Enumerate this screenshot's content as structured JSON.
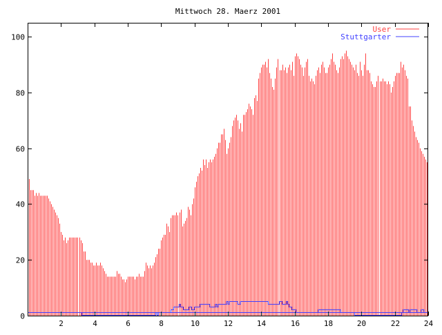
{
  "chart_data": {
    "type": "bar",
    "title": "Mittwoch 28. Maerz 2001",
    "xlabel": "",
    "ylabel": "",
    "xlim": [
      0,
      24
    ],
    "ylim": [
      0,
      105
    ],
    "x_step_hours": 0.0833333,
    "xticks": [
      2,
      4,
      6,
      8,
      10,
      12,
      14,
      16,
      18,
      20,
      22,
      24
    ],
    "yticks": [
      0,
      20,
      40,
      60,
      80,
      100
    ],
    "grid": false,
    "legend": "top-right",
    "series": [
      {
        "name": "User",
        "style": "impulses",
        "color": "#ff4040",
        "values": [
          53,
          49,
          45,
          45,
          45,
          43,
          44,
          43,
          44,
          43,
          43,
          43,
          43,
          43,
          43,
          42,
          41,
          40,
          39,
          38,
          37,
          36,
          35,
          33,
          30,
          29,
          27,
          28,
          26,
          27,
          28,
          28,
          28,
          28,
          28,
          28,
          28,
          28,
          27,
          26,
          23,
          23,
          20,
          20,
          20,
          19,
          19,
          18,
          18,
          19,
          18,
          18,
          19,
          18,
          17,
          16,
          15,
          14,
          14,
          14,
          14,
          14,
          14,
          14,
          16,
          15,
          15,
          14,
          13,
          13,
          12,
          13,
          14,
          14,
          14,
          14,
          14,
          13,
          14,
          14,
          15,
          14,
          14,
          14,
          16,
          19,
          18,
          17,
          18,
          17,
          18,
          19,
          21,
          22,
          24,
          24,
          27,
          28,
          29,
          29,
          33,
          32,
          30,
          35,
          36,
          36,
          36,
          37,
          36,
          37,
          38,
          32,
          33,
          34,
          35,
          39,
          38,
          36,
          40,
          42,
          46,
          48,
          50,
          51,
          53,
          52,
          56,
          54,
          56,
          53,
          55,
          56,
          55,
          56,
          57,
          58,
          60,
          62,
          62,
          65,
          65,
          67,
          63,
          58,
          60,
          62,
          64,
          68,
          70,
          71,
          72,
          70,
          67,
          69,
          66,
          72,
          72,
          73,
          74,
          76,
          75,
          74,
          72,
          78,
          79,
          77,
          85,
          87,
          89,
          90,
          90,
          91,
          89,
          92,
          87,
          85,
          82,
          81,
          85,
          89,
          92,
          88,
          88,
          90,
          88,
          89,
          87,
          89,
          90,
          88,
          91,
          86,
          93,
          94,
          93,
          92,
          90,
          89,
          86,
          89,
          91,
          92,
          86,
          84,
          85,
          84,
          83,
          86,
          88,
          89,
          87,
          90,
          91,
          89,
          87,
          87,
          89,
          90,
          92,
          94,
          91,
          90,
          88,
          87,
          89,
          92,
          93,
          92,
          94,
          95,
          93,
          92,
          91,
          90,
          89,
          88,
          90,
          87,
          86,
          91,
          88,
          86,
          90,
          94,
          88,
          88,
          87,
          84,
          83,
          82,
          82,
          84,
          86,
          84,
          84,
          85,
          84,
          84,
          83,
          84,
          83,
          80,
          82,
          84,
          86,
          87,
          87,
          87,
          91,
          89,
          90,
          88,
          86,
          85,
          75,
          75,
          70,
          68,
          66,
          64,
          63,
          62,
          60,
          59,
          58,
          57,
          56,
          55
        ]
      },
      {
        "name": "Stuttgarter",
        "style": "steps",
        "color": "#4040ff",
        "values": [
          1,
          1,
          1,
          1,
          1,
          1,
          1,
          1,
          1,
          1,
          1,
          1,
          1,
          1,
          1,
          1,
          1,
          1,
          1,
          1,
          1,
          1,
          1,
          1,
          1,
          1,
          1,
          1,
          1,
          1,
          1,
          1,
          1,
          1,
          1,
          1,
          1,
          1,
          1,
          0,
          0,
          0,
          0,
          0,
          0,
          0,
          0,
          0,
          0,
          0,
          0,
          0,
          0,
          0,
          0,
          0,
          0,
          0,
          0,
          0,
          0,
          0,
          0,
          0,
          0,
          0,
          0,
          0,
          0,
          0,
          0,
          0,
          0,
          0,
          0,
          0,
          0,
          0,
          0,
          0,
          0,
          0,
          0,
          0,
          0,
          0,
          0,
          0,
          0,
          0,
          0,
          0,
          1,
          0,
          1,
          1,
          1,
          1,
          1,
          1,
          1,
          1,
          1,
          2,
          2,
          3,
          3,
          3,
          3,
          4,
          3,
          3,
          2,
          2,
          2,
          2,
          3,
          3,
          2,
          2,
          3,
          3,
          3,
          3,
          4,
          4,
          4,
          4,
          4,
          4,
          4,
          3,
          3,
          3,
          3,
          4,
          3,
          4,
          4,
          4,
          4,
          4,
          4,
          5,
          4,
          5,
          5,
          5,
          5,
          5,
          5,
          4,
          4,
          5,
          5,
          5,
          5,
          5,
          5,
          5,
          5,
          5,
          5,
          5,
          5,
          5,
          5,
          5,
          5,
          5,
          5,
          5,
          5,
          4,
          4,
          4,
          4,
          4,
          4,
          4,
          4,
          5,
          5,
          4,
          4,
          4,
          5,
          4,
          3,
          3,
          2,
          2,
          2,
          1,
          1,
          1,
          1,
          1,
          1,
          1,
          1,
          1,
          1,
          1,
          1,
          1,
          1,
          1,
          1,
          2,
          2,
          2,
          2,
          2,
          2,
          2,
          2,
          2,
          2,
          2,
          2,
          2,
          2,
          2,
          2,
          1,
          1,
          1,
          1,
          1,
          1,
          1,
          1,
          1,
          1,
          0,
          0,
          0,
          0,
          0,
          0,
          0,
          0,
          0,
          0,
          0,
          0,
          0,
          0,
          0,
          0,
          0,
          0,
          0,
          0,
          0,
          0,
          0,
          0,
          0,
          0,
          0,
          0,
          0,
          0,
          0,
          0,
          0,
          0,
          1,
          2,
          2,
          2,
          2,
          1,
          2,
          2,
          2,
          2,
          2,
          1,
          1,
          1,
          2,
          2,
          1,
          1,
          1
        ]
      },
      {
        "style": "line",
        "color": "#4040ff",
        "values": [
          1,
          1
        ]
      }
    ]
  }
}
